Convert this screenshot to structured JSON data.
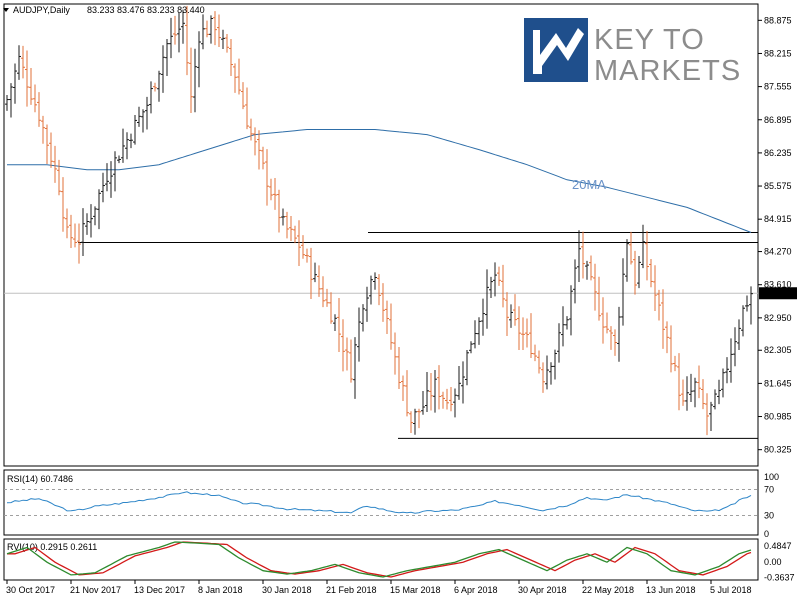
{
  "header": {
    "symbol": "AUDJPY,Daily",
    "ohlc": "83.233 83.476 83.233 83.440",
    "triangle": "dropdown-triangle"
  },
  "logo": {
    "line1": "KEY TO",
    "line2": "MARKETS"
  },
  "colors": {
    "bullish": "#1a1a1a",
    "bearish": "#e2713a",
    "ma": "#2e6ea8",
    "ma_label": "#6a92c8",
    "rsi": "#2e86c8",
    "rvi_main": "#2e8b2e",
    "rvi_signal": "#d31a1a",
    "grid_dash": "#a0a0a0",
    "logo_blue": "#1f4f8c",
    "logo_text": "#8c8c8c"
  },
  "chart_data": [
    {
      "type": "ohlc",
      "title": "AUDJPY,Daily",
      "ylim": [
        80.0,
        89.2
      ],
      "y_ticks": [
        "88.875",
        "88.215",
        "87.555",
        "86.895",
        "86.235",
        "85.575",
        "84.915",
        "84.270",
        "83.610",
        "82.950",
        "82.305",
        "81.645",
        "80.985",
        "80.325"
      ],
      "current_price": "83.440",
      "x_ticks": [
        "30 Oct 2017",
        "21 Nov 2017",
        "13 Dec 2017",
        "8 Jan 2018",
        "30 Jan 2018",
        "21 Feb 2018",
        "15 Mar 2018",
        "6 Apr 2018",
        "30 Apr 2018",
        "22 May 2018",
        "13 Jun 2018",
        "5 Jul 2018"
      ],
      "close_anchors": [
        [
          0,
          87.3
        ],
        [
          3,
          88.1
        ],
        [
          8,
          87.0
        ],
        [
          13,
          85.6
        ],
        [
          15,
          84.6
        ],
        [
          18,
          84.5
        ],
        [
          22,
          85.2
        ],
        [
          25,
          85.8
        ],
        [
          30,
          86.5
        ],
        [
          35,
          87.2
        ],
        [
          40,
          88.4
        ],
        [
          44,
          88.8
        ],
        [
          46,
          87.3
        ],
        [
          48,
          88.6
        ],
        [
          52,
          88.8
        ],
        [
          57,
          87.8
        ],
        [
          61,
          86.6
        ],
        [
          65,
          85.7
        ],
        [
          69,
          84.8
        ],
        [
          73,
          84.4
        ],
        [
          77,
          83.7
        ],
        [
          82,
          82.9
        ],
        [
          86,
          81.9
        ],
        [
          89,
          83.3
        ],
        [
          92,
          83.9
        ],
        [
          95,
          82.8
        ],
        [
          98,
          81.8
        ],
        [
          101,
          80.9
        ],
        [
          104,
          81.2
        ],
        [
          107,
          81.6
        ],
        [
          110,
          81.3
        ],
        [
          113,
          81.6
        ],
        [
          116,
          82.5
        ],
        [
          119,
          83.2
        ],
        [
          122,
          83.8
        ],
        [
          125,
          83.0
        ],
        [
          128,
          82.7
        ],
        [
          131,
          82.4
        ],
        [
          134,
          81.8
        ],
        [
          137,
          82.3
        ],
        [
          140,
          83.0
        ],
        [
          143,
          84.3
        ],
        [
          146,
          83.6
        ],
        [
          149,
          82.9
        ],
        [
          152,
          82.4
        ],
        [
          155,
          84.5
        ],
        [
          157,
          83.7
        ],
        [
          159,
          84.3
        ],
        [
          161,
          83.7
        ],
        [
          163,
          83.1
        ],
        [
          166,
          82.2
        ],
        [
          169,
          81.2
        ],
        [
          172,
          81.6
        ],
        [
          175,
          81.0
        ],
        [
          178,
          81.4
        ],
        [
          181,
          82.3
        ],
        [
          184,
          83.1
        ],
        [
          186,
          83.44
        ]
      ],
      "series": [
        {
          "name": "20MA",
          "anchors": [
            [
              0,
              86.0
            ],
            [
              10,
              86.0
            ],
            [
              20,
              85.9
            ],
            [
              28,
              85.9
            ],
            [
              38,
              86.0
            ],
            [
              50,
              86.3
            ],
            [
              62,
              86.6
            ],
            [
              75,
              86.7
            ],
            [
              92,
              86.7
            ],
            [
              105,
              86.6
            ],
            [
              118,
              86.3
            ],
            [
              130,
              86.0
            ],
            [
              140,
              85.7
            ],
            [
              150,
              85.55
            ],
            [
              160,
              85.35
            ],
            [
              170,
              85.15
            ],
            [
              178,
              84.9
            ],
            [
              186,
              84.65
            ]
          ]
        }
      ],
      "levels": [
        84.45,
        84.65,
        80.55
      ],
      "annotations": [
        "20MA"
      ]
    },
    {
      "type": "line",
      "title": "RSI(14) 60.7486",
      "ylim": [
        0,
        100
      ],
      "y_ticks": [
        "100",
        "70",
        "30",
        "0"
      ],
      "levels": [
        70,
        30
      ],
      "series": [
        {
          "name": "RSI(14)",
          "anchors": [
            [
              0,
              50
            ],
            [
              8,
              56
            ],
            [
              16,
              36
            ],
            [
              22,
              44
            ],
            [
              30,
              50
            ],
            [
              40,
              60
            ],
            [
              44,
              66
            ],
            [
              48,
              63
            ],
            [
              52,
              62
            ],
            [
              58,
              50
            ],
            [
              64,
              46
            ],
            [
              70,
              40
            ],
            [
              76,
              38
            ],
            [
              82,
              36
            ],
            [
              86,
              34
            ],
            [
              90,
              45
            ],
            [
              95,
              38
            ],
            [
              100,
              33
            ],
            [
              106,
              37
            ],
            [
              112,
              38
            ],
            [
              118,
              45
            ],
            [
              122,
              52
            ],
            [
              128,
              46
            ],
            [
              134,
              38
            ],
            [
              140,
              46
            ],
            [
              145,
              58
            ],
            [
              149,
              53
            ],
            [
              155,
              62
            ],
            [
              160,
              56
            ],
            [
              166,
              48
            ],
            [
              171,
              38
            ],
            [
              176,
              36
            ],
            [
              180,
              42
            ],
            [
              184,
              56
            ],
            [
              186,
              60.7
            ]
          ]
        }
      ]
    },
    {
      "type": "line",
      "title": "RVI(10) 0.2915 0.2611",
      "ylim": [
        -0.42,
        0.55
      ],
      "y_ticks": [
        "0.4847",
        "0.00",
        "-0.3637"
      ],
      "series": [
        {
          "name": "RVI",
          "anchors": [
            [
              0,
              0.2
            ],
            [
              5,
              0.35
            ],
            [
              10,
              0.0
            ],
            [
              16,
              -0.3
            ],
            [
              22,
              -0.25
            ],
            [
              30,
              0.15
            ],
            [
              38,
              0.35
            ],
            [
              42,
              0.48
            ],
            [
              48,
              0.45
            ],
            [
              53,
              0.42
            ],
            [
              58,
              0.1
            ],
            [
              64,
              -0.2
            ],
            [
              70,
              -0.28
            ],
            [
              76,
              -0.2
            ],
            [
              82,
              -0.05
            ],
            [
              88,
              -0.25
            ],
            [
              94,
              -0.35
            ],
            [
              100,
              -0.2
            ],
            [
              106,
              -0.1
            ],
            [
              112,
              0.0
            ],
            [
              118,
              0.2
            ],
            [
              123,
              0.3
            ],
            [
              129,
              0.05
            ],
            [
              135,
              -0.2
            ],
            [
              140,
              0.05
            ],
            [
              145,
              0.2
            ],
            [
              150,
              0.0
            ],
            [
              155,
              0.35
            ],
            [
              160,
              0.2
            ],
            [
              166,
              -0.2
            ],
            [
              172,
              -0.3
            ],
            [
              178,
              -0.1
            ],
            [
              183,
              0.2
            ],
            [
              186,
              0.29
            ]
          ]
        }
      ]
    }
  ]
}
